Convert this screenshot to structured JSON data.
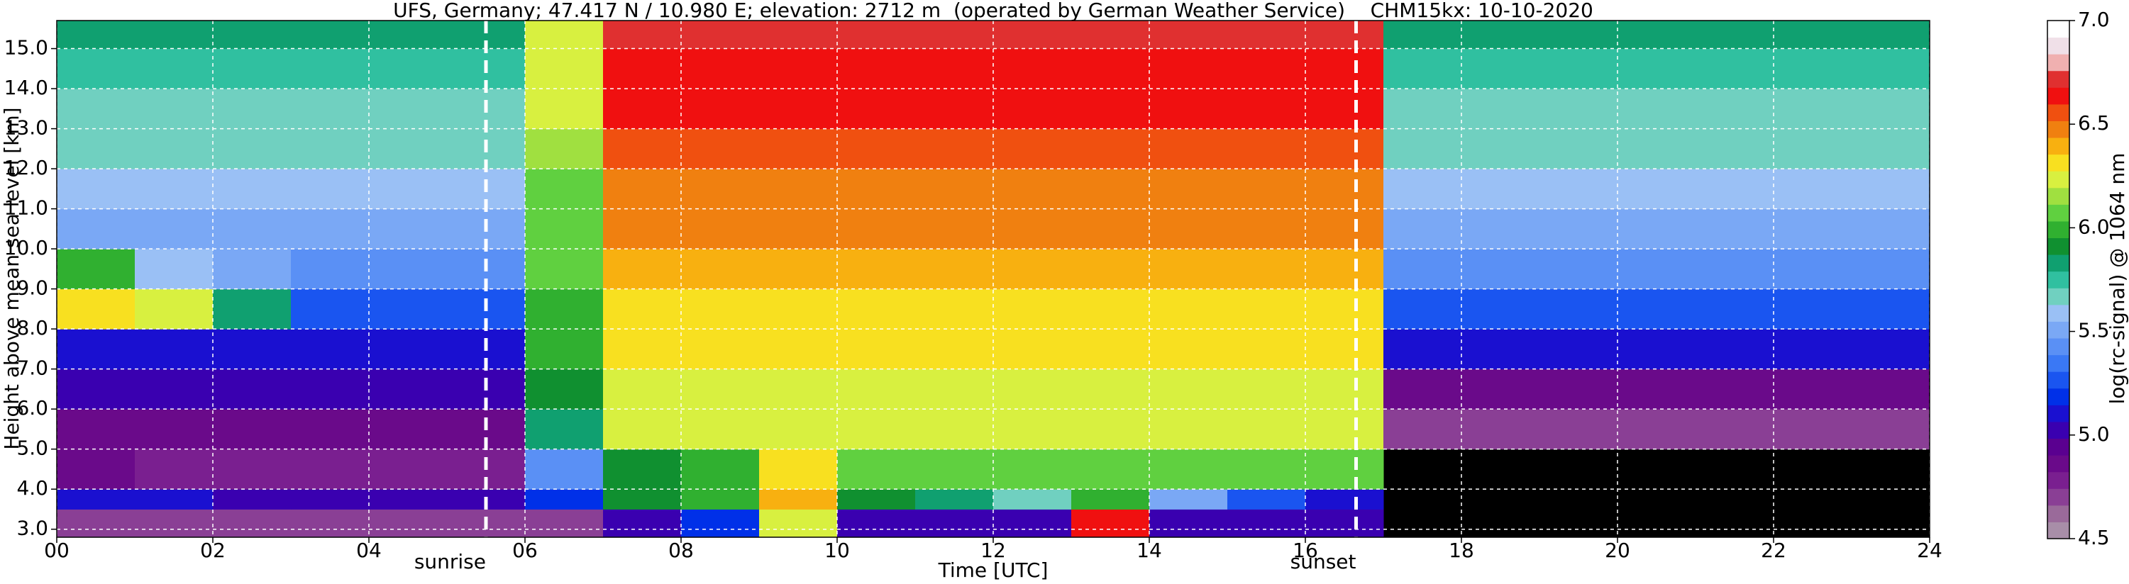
{
  "chart_data": {
    "type": "heatmap",
    "title": "UFS, Germany; 47.417 N / 10.980 E; elevation: 2712 m  (operated by German Weather Service)    CHM15kx: 10-10-2020",
    "xlabel": "Time [UTC]",
    "ylabel": "Height above mean sea level [km]",
    "x_bins": [
      0,
      1,
      2,
      3,
      4,
      5,
      6,
      7,
      8,
      9,
      10,
      11,
      12,
      13,
      14,
      15,
      16,
      17,
      18,
      19,
      20,
      21,
      22,
      23,
      24
    ],
    "y_bins": [
      2.8,
      3.5,
      4,
      5,
      6,
      7,
      8,
      9,
      10,
      11,
      12,
      13,
      14,
      15,
      15.7
    ],
    "z": [
      [
        4.7,
        4.7,
        4.7,
        4.7,
        4.7,
        4.7,
        4.7,
        5.0,
        5.2,
        6.2,
        5.0,
        5.0,
        5.0,
        6.6,
        5.0,
        5.0,
        5.0,
        null,
        null,
        null,
        null,
        null,
        null,
        null
      ],
      [
        5.1,
        5.1,
        5.0,
        5.0,
        5.0,
        5.0,
        5.2,
        5.9,
        6.0,
        6.4,
        5.9,
        5.8,
        5.7,
        6.0,
        5.5,
        5.3,
        5.1,
        null,
        null,
        null,
        null,
        null,
        null,
        null
      ],
      [
        4.9,
        4.8,
        4.8,
        4.8,
        4.8,
        4.8,
        5.4,
        5.9,
        6.0,
        6.3,
        6.1,
        6.1,
        6.1,
        6.1,
        6.1,
        6.1,
        6.1,
        null,
        null,
        null,
        null,
        null,
        null,
        null
      ],
      [
        4.9,
        4.9,
        4.9,
        4.9,
        4.9,
        4.9,
        5.8,
        6.2,
        6.2,
        6.2,
        6.2,
        6.2,
        6.2,
        6.2,
        6.2,
        6.2,
        6.2,
        4.7,
        4.7,
        4.7,
        4.7,
        4.7,
        4.7,
        4.7
      ],
      [
        5.0,
        5.0,
        5.0,
        5.0,
        5.0,
        5.0,
        5.9,
        6.25,
        6.25,
        6.25,
        6.25,
        6.25,
        6.25,
        6.25,
        6.25,
        6.25,
        6.25,
        4.9,
        4.9,
        4.9,
        4.9,
        4.9,
        4.9,
        4.9
      ],
      [
        5.1,
        5.1,
        5.1,
        5.1,
        5.1,
        5.1,
        6.0,
        6.3,
        6.3,
        6.3,
        6.3,
        6.3,
        6.3,
        6.3,
        6.3,
        6.3,
        6.3,
        5.1,
        5.1,
        5.1,
        5.1,
        5.1,
        5.1,
        5.1
      ],
      [
        6.3,
        6.2,
        5.8,
        5.3,
        5.3,
        5.3,
        6.0,
        6.35,
        6.35,
        6.35,
        6.35,
        6.35,
        6.35,
        6.35,
        6.35,
        6.35,
        6.35,
        5.3,
        5.3,
        5.3,
        5.3,
        5.3,
        5.3,
        5.3
      ],
      [
        6.0,
        5.6,
        5.5,
        5.4,
        5.4,
        5.4,
        6.05,
        6.4,
        6.4,
        6.4,
        6.4,
        6.4,
        6.4,
        6.4,
        6.4,
        6.4,
        6.4,
        5.4,
        5.4,
        5.4,
        5.4,
        5.4,
        5.4,
        5.4
      ],
      [
        5.5,
        5.5,
        5.5,
        5.5,
        5.5,
        5.5,
        6.1,
        6.45,
        6.45,
        6.45,
        6.45,
        6.45,
        6.45,
        6.45,
        6.45,
        6.45,
        6.45,
        5.5,
        5.5,
        5.5,
        5.5,
        5.5,
        5.5,
        5.5
      ],
      [
        5.6,
        5.6,
        5.6,
        5.6,
        5.6,
        5.6,
        6.1,
        6.5,
        6.5,
        6.5,
        6.5,
        6.5,
        6.5,
        6.5,
        6.5,
        6.5,
        6.5,
        5.6,
        5.6,
        5.6,
        5.6,
        5.6,
        5.6,
        5.6
      ],
      [
        5.65,
        5.65,
        5.65,
        5.65,
        5.65,
        5.65,
        6.15,
        6.55,
        6.55,
        6.55,
        6.55,
        6.55,
        6.55,
        6.55,
        6.55,
        6.55,
        6.55,
        5.65,
        5.65,
        5.65,
        5.65,
        5.65,
        5.65,
        5.65
      ],
      [
        5.7,
        5.7,
        5.7,
        5.7,
        5.7,
        5.7,
        6.2,
        6.6,
        6.6,
        6.6,
        6.6,
        6.6,
        6.6,
        6.6,
        6.6,
        6.6,
        6.6,
        5.7,
        5.7,
        5.7,
        5.7,
        5.7,
        5.7,
        5.7
      ],
      [
        5.75,
        5.75,
        5.75,
        5.75,
        5.75,
        5.75,
        6.2,
        6.65,
        6.65,
        6.65,
        6.65,
        6.65,
        6.65,
        6.65,
        6.65,
        6.65,
        6.65,
        5.75,
        5.75,
        5.75,
        5.75,
        5.75,
        5.75,
        5.75
      ],
      [
        5.8,
        5.8,
        5.8,
        5.8,
        5.8,
        5.8,
        6.25,
        6.7,
        6.7,
        6.7,
        6.7,
        6.7,
        6.7,
        6.7,
        6.7,
        6.7,
        6.7,
        5.8,
        5.8,
        5.8,
        5.8,
        5.8,
        5.8,
        5.8
      ]
    ],
    "xlim": [
      0,
      24
    ],
    "ylim": [
      2.8,
      15.7
    ],
    "xticks": [
      {
        "value": 0,
        "label": "00"
      },
      {
        "value": 2,
        "label": "02"
      },
      {
        "value": 4,
        "label": "04"
      },
      {
        "value": 6,
        "label": "06"
      },
      {
        "value": 8,
        "label": "08"
      },
      10,
      12,
      14,
      16,
      18,
      20,
      22,
      24
    ],
    "yticks": [
      {
        "value": 3,
        "label": "3.0"
      },
      {
        "value": 4,
        "label": "4.0"
      },
      {
        "value": 5,
        "label": "5.0"
      },
      {
        "value": 6,
        "label": "6.0"
      },
      {
        "value": 7,
        "label": "7.0"
      },
      {
        "value": 8,
        "label": "8.0"
      },
      {
        "value": 9,
        "label": "9.0"
      },
      {
        "value": 10,
        "label": "10.0"
      },
      {
        "value": 11,
        "label": "11.0"
      },
      {
        "value": 12,
        "label": "12.0"
      },
      {
        "value": 13,
        "label": "13.0"
      },
      {
        "value": 14,
        "label": "14.0"
      },
      {
        "value": 15,
        "label": "15.0"
      }
    ],
    "grid": true,
    "grid_color": "#ffffff",
    "missing_color": "#000000",
    "annotations": [
      {
        "text": "sunrise",
        "x": 5.5
      },
      {
        "text": "sunset",
        "x": 16.65
      }
    ],
    "colorbar": {
      "label": "log(rc-signal) @ 1064 nm",
      "clim": [
        4.5,
        7.0
      ],
      "ticks": [
        4.5,
        {
          "value": 5,
          "label": "5.0"
        },
        5.5,
        {
          "value": 6,
          "label": "6.0"
        },
        6.5,
        {
          "value": 7,
          "label": "7.0"
        }
      ],
      "colors": [
        "#a88ea8",
        "#9a6a9a",
        "#8a3f95",
        "#7a1f90",
        "#6a0a8a",
        "#5a0090",
        "#3a00b0",
        "#1a10d0",
        "#0030e8",
        "#1a55f0",
        "#3a78f5",
        "#5a90f5",
        "#7aa8f5",
        "#9ac0f5",
        "#70d0c0",
        "#30c0a0",
        "#10a070",
        "#109030",
        "#30b030",
        "#60d040",
        "#a0e040",
        "#d8f040",
        "#f8e020",
        "#f8b010",
        "#f08010",
        "#f05010",
        "#f01010",
        "#e03030",
        "#f0b0b0",
        "#f0e0e8",
        "#ffffff"
      ]
    }
  }
}
